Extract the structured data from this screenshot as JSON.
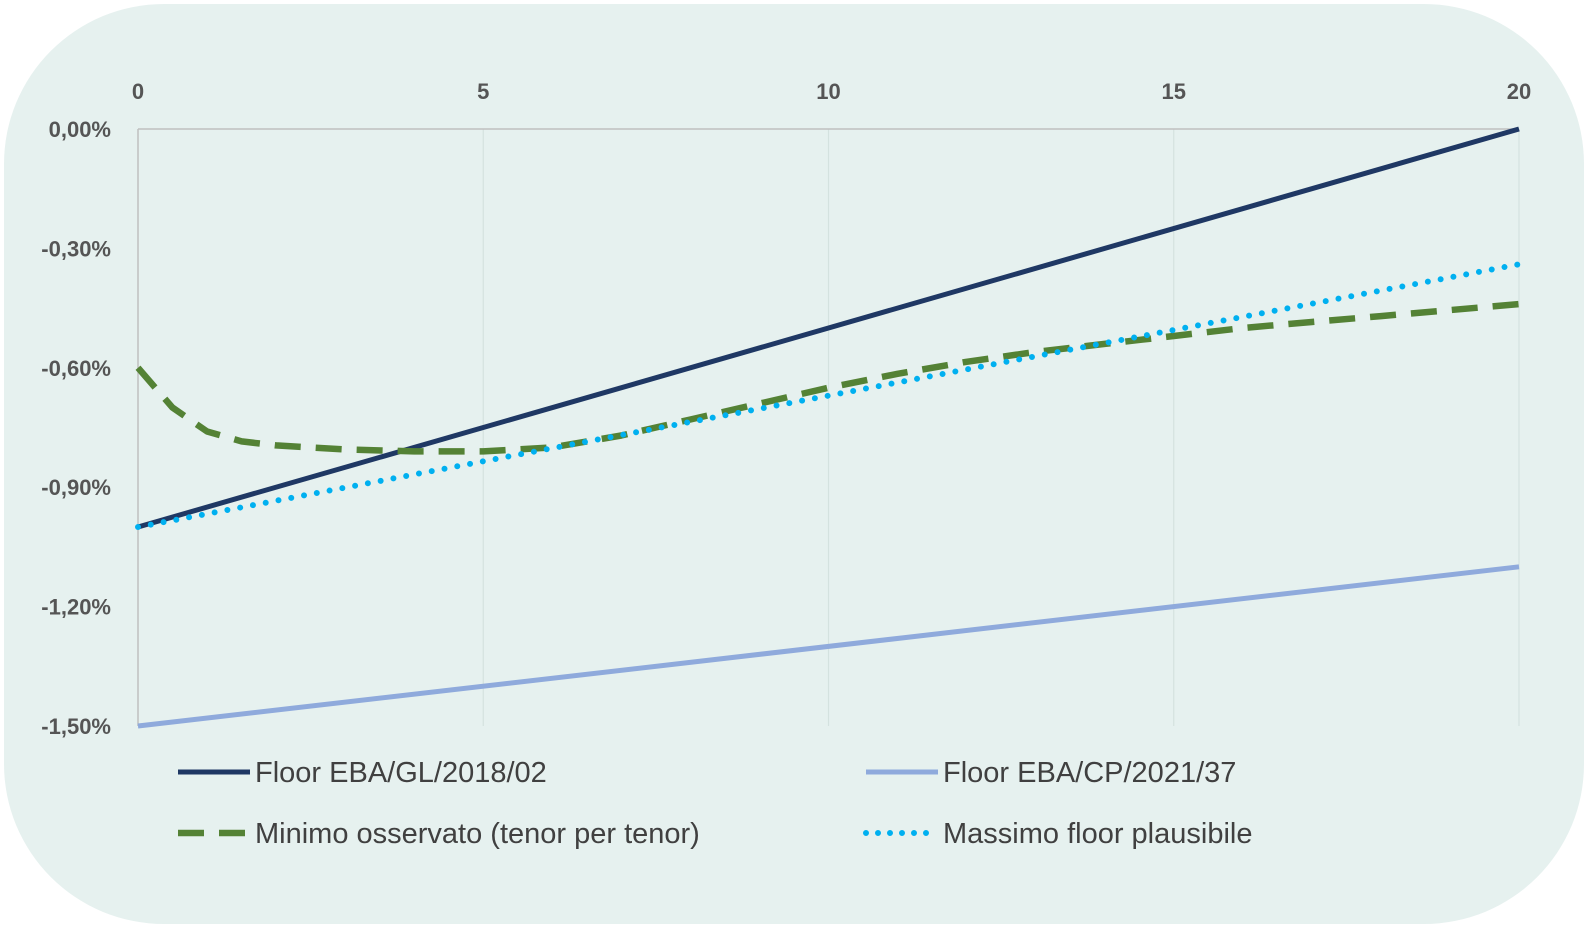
{
  "chart_data": {
    "type": "line",
    "title": "",
    "xlabel": "",
    "ylabel": "",
    "xlim": [
      0,
      20
    ],
    "ylim": [
      -1.5,
      0
    ],
    "x_ticks": [
      0,
      5,
      10,
      15,
      20
    ],
    "x_tick_labels": [
      "0",
      "5",
      "10",
      "15",
      "20"
    ],
    "y_ticks": [
      0,
      -0.3,
      -0.6,
      -0.9,
      -1.2,
      -1.5
    ],
    "y_tick_labels": [
      "0,00%",
      "-0,30%",
      "-0,60%",
      "-0,90%",
      "-1,20%",
      "-1,50%"
    ],
    "x_axis_position": "top",
    "grid": "vertical",
    "legend_position": "bottom",
    "series": [
      {
        "name": "Floor EBA/GL/2018/02",
        "color": "#1f3864",
        "style": "solid",
        "x": [
          0,
          20
        ],
        "y": [
          -1.0,
          0.0
        ]
      },
      {
        "name": "Floor EBA/CP/2021/37",
        "color": "#8faadc",
        "style": "solid",
        "x": [
          0,
          20
        ],
        "y": [
          -1.5,
          -1.1
        ]
      },
      {
        "name": "Minimo osservato (tenor per tenor)",
        "color": "#548235",
        "style": "dashed",
        "x": [
          0,
          0.5,
          1,
          1.5,
          2,
          3,
          4,
          5,
          6,
          7,
          8,
          9,
          10,
          11,
          12,
          13,
          14,
          15,
          16,
          17,
          18,
          19,
          20
        ],
        "y": [
          -0.6,
          -0.7,
          -0.76,
          -0.785,
          -0.795,
          -0.805,
          -0.81,
          -0.81,
          -0.8,
          -0.77,
          -0.73,
          -0.69,
          -0.65,
          -0.615,
          -0.585,
          -0.56,
          -0.54,
          -0.52,
          -0.5,
          -0.485,
          -0.47,
          -0.455,
          -0.44
        ]
      },
      {
        "name": "Massimo floor plausibile",
        "color": "#00b0f0",
        "style": "dotted",
        "x": [
          0,
          20
        ],
        "y": [
          -1.0,
          -0.34
        ]
      }
    ]
  }
}
